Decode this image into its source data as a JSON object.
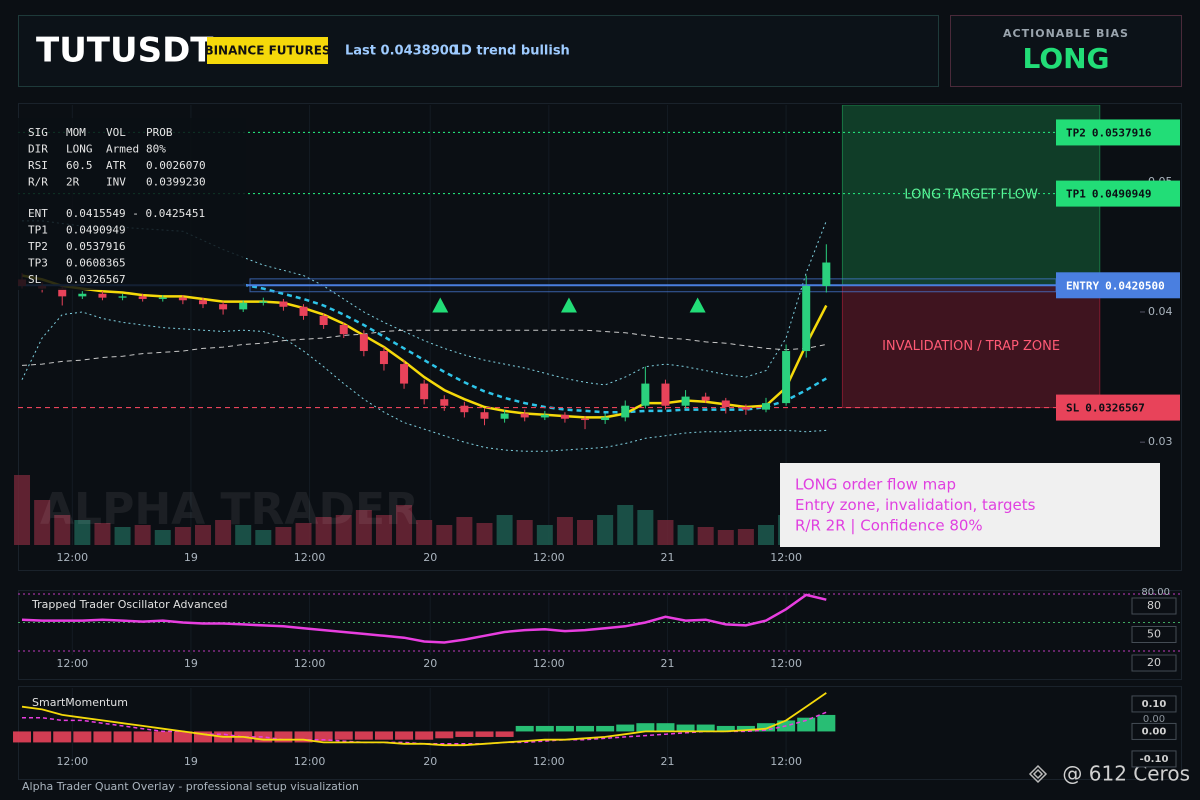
{
  "header": {
    "symbol": "TUTUSDT",
    "exchange": "BINANCE FUTURES",
    "last": "Last 0.0438900",
    "trend": "1D trend bullish",
    "bias_label": "ACTIONABLE BIAS",
    "bias": "LONG"
  },
  "stats_rows": [
    [
      "SIG",
      "MOM",
      "VOL",
      "PROB"
    ],
    [
      "DIR",
      "LONG",
      "Armed",
      "80%"
    ],
    [
      "RSI",
      "60.5",
      "ATR",
      "0.0026070"
    ],
    [
      "R/R",
      "2R",
      "INV",
      "0.0399230"
    ]
  ],
  "level_rows": [
    [
      "ENT",
      "0.0415549 - 0.0425451"
    ],
    [
      "TP1",
      "0.0490949"
    ],
    [
      "TP2",
      "0.0537916"
    ],
    [
      "TP3",
      "0.0608365"
    ],
    [
      "SL",
      "0.0326567"
    ]
  ],
  "annotation": [
    "LONG order flow map",
    "Entry zone, invalidation, targets",
    "R/R 2R | Confidence 80%"
  ],
  "watermark": "ALPHA TRADER",
  "footer": "Alpha Trader Quant Overlay - professional setup visualization",
  "credit": "@ 612 Ceros",
  "chart_data": [
    {
      "type": "candlestick",
      "xlim": [
        -0.2,
        55.6
      ],
      "xticks": [
        {
          "value": 2.5,
          "label": "12:00"
        },
        {
          "value": 8.4,
          "label": "19"
        },
        {
          "value": 14.3,
          "label": "12:00"
        },
        {
          "value": 20.3,
          "label": "20"
        },
        {
          "value": 26.2,
          "label": "12:00"
        },
        {
          "value": 32.1,
          "label": "21"
        },
        {
          "value": 38.0,
          "label": "12:00"
        }
      ],
      "ylim": [
        0.0221,
        0.0559
      ],
      "yticks": [
        0.03,
        0.04,
        0.05
      ],
      "up_color": "#2bd17e",
      "down_color": "#e8435a",
      "open": [
        0.0425,
        0.042,
        0.0418,
        0.0412,
        0.0414,
        0.0411,
        0.0412,
        0.041,
        0.0411,
        0.0409,
        0.0406,
        0.0402,
        0.0407,
        0.0408,
        0.0404,
        0.0397,
        0.039,
        0.0383,
        0.037,
        0.036,
        0.0345,
        0.0333,
        0.0328,
        0.0323,
        0.0318,
        0.0322,
        0.0319,
        0.0321,
        0.0318,
        0.0317,
        0.0319,
        0.0328,
        0.0345,
        0.0328,
        0.0335,
        0.0332,
        0.0327,
        0.0325,
        0.033,
        0.037,
        0.042
      ],
      "high": [
        0.043,
        0.0423,
        0.042,
        0.0416,
        0.0416,
        0.0414,
        0.0414,
        0.0413,
        0.0413,
        0.0411,
        0.0408,
        0.0409,
        0.0411,
        0.041,
        0.0406,
        0.0399,
        0.0392,
        0.0386,
        0.0373,
        0.0363,
        0.0348,
        0.0336,
        0.0331,
        0.0326,
        0.0325,
        0.0325,
        0.0324,
        0.0323,
        0.032,
        0.0322,
        0.0332,
        0.0358,
        0.0348,
        0.034,
        0.0338,
        0.0334,
        0.0329,
        0.0334,
        0.0375,
        0.0428,
        0.0452
      ],
      "low": [
        0.0418,
        0.0415,
        0.0405,
        0.041,
        0.0409,
        0.0409,
        0.0408,
        0.0408,
        0.0406,
        0.0403,
        0.0398,
        0.04,
        0.0405,
        0.0401,
        0.0394,
        0.0387,
        0.038,
        0.0366,
        0.0355,
        0.0341,
        0.0329,
        0.0324,
        0.0319,
        0.0313,
        0.0315,
        0.0316,
        0.0317,
        0.0315,
        0.031,
        0.0314,
        0.0316,
        0.0326,
        0.0325,
        0.0326,
        0.033,
        0.0322,
        0.0321,
        0.0323,
        0.0328,
        0.0365,
        0.0415
      ],
      "close": [
        0.042,
        0.0418,
        0.0412,
        0.0414,
        0.0411,
        0.0412,
        0.041,
        0.0411,
        0.0409,
        0.0406,
        0.0402,
        0.0407,
        0.0408,
        0.0404,
        0.0397,
        0.039,
        0.0383,
        0.037,
        0.036,
        0.0345,
        0.0333,
        0.0328,
        0.0323,
        0.0318,
        0.0322,
        0.0319,
        0.0321,
        0.0318,
        0.0317,
        0.0319,
        0.0328,
        0.0345,
        0.0328,
        0.0335,
        0.0332,
        0.0327,
        0.0325,
        0.033,
        0.037,
        0.042,
        0.0438
      ],
      "volume": [
        70,
        45,
        30,
        25,
        22,
        18,
        20,
        15,
        18,
        20,
        25,
        20,
        15,
        18,
        22,
        28,
        30,
        35,
        30,
        40,
        25,
        20,
        28,
        22,
        30,
        25,
        20,
        28,
        25,
        30,
        40,
        35,
        25,
        20,
        18,
        15,
        16,
        20,
        30,
        45,
        35
      ],
      "lines": [
        {
          "color": "#7fd0e0",
          "style": "dotted",
          "values": [
            0.047,
            0.047,
            0.0468,
            0.0466,
            0.0465,
            0.0465,
            0.0464,
            0.0463,
            0.0462,
            0.0455,
            0.0448,
            0.0442,
            0.0436,
            0.0432,
            0.0428,
            0.042,
            0.041,
            0.04,
            0.0392,
            0.0385,
            0.0378,
            0.0372,
            0.0367,
            0.0363,
            0.036,
            0.0357,
            0.0353,
            0.0349,
            0.0346,
            0.0344,
            0.035,
            0.0358,
            0.036,
            0.0358,
            0.0355,
            0.0352,
            0.035,
            0.0355,
            0.038,
            0.043,
            0.047
          ]
        },
        {
          "color": "#7fd0e0",
          "style": "dotted",
          "values": [
            0.0348,
            0.038,
            0.0398,
            0.04,
            0.0395,
            0.0392,
            0.039,
            0.0388,
            0.0387,
            0.0386,
            0.0385,
            0.0386,
            0.0385,
            0.038,
            0.037,
            0.0358,
            0.0345,
            0.0333,
            0.0323,
            0.0315,
            0.031,
            0.0305,
            0.03,
            0.0296,
            0.0294,
            0.0293,
            0.0293,
            0.0294,
            0.0295,
            0.0296,
            0.0299,
            0.0303,
            0.0305,
            0.0307,
            0.0308,
            0.0308,
            0.0309,
            0.0309,
            0.0309,
            0.0308,
            0.0309
          ]
        },
        {
          "color": "#c8c8c8",
          "style": "dashed",
          "values": [
            0.0359,
            0.036,
            0.0362,
            0.0363,
            0.0365,
            0.0366,
            0.0368,
            0.0369,
            0.037,
            0.0372,
            0.0373,
            0.0375,
            0.0376,
            0.0378,
            0.0379,
            0.038,
            0.0382,
            0.0383,
            0.0385,
            0.0386,
            0.0386,
            0.0386,
            0.0386,
            0.0386,
            0.0386,
            0.0386,
            0.0386,
            0.0386,
            0.0386,
            0.0385,
            0.0384,
            0.0382,
            0.038,
            0.0379,
            0.0377,
            0.0376,
            0.0374,
            0.0372,
            0.0371,
            0.0372,
            0.0375
          ]
        },
        {
          "color": "#2ec4e8",
          "style": "dashed-bold",
          "values": [
            null,
            null,
            null,
            null,
            null,
            null,
            null,
            null,
            null,
            null,
            null,
            0.0421,
            0.0418,
            0.0414,
            0.041,
            0.0405,
            0.0398,
            0.039,
            0.0381,
            0.0372,
            0.0363,
            0.0354,
            0.0346,
            0.0339,
            0.0334,
            0.033,
            0.0327,
            0.0325,
            0.0324,
            0.0323,
            0.0323,
            0.0324,
            0.0324,
            0.0325,
            0.0325,
            0.0325,
            0.0325,
            0.0327,
            0.0332,
            0.034,
            0.0349
          ]
        },
        {
          "color": "#f5d90a",
          "style": "solid",
          "values": [
            0.0428,
            0.0425,
            0.042,
            0.0418,
            0.0416,
            0.0415,
            0.0413,
            0.0412,
            0.0412,
            0.041,
            0.0408,
            0.0408,
            0.0408,
            0.0407,
            0.0403,
            0.0398,
            0.0391,
            0.0382,
            0.0373,
            0.0362,
            0.035,
            0.034,
            0.0333,
            0.0327,
            0.0324,
            0.0322,
            0.0321,
            0.032,
            0.0319,
            0.0319,
            0.0322,
            0.033,
            0.033,
            0.0332,
            0.0331,
            0.0329,
            0.0327,
            0.0328,
            0.0342,
            0.0375,
            0.0405
          ]
        }
      ],
      "levels": [
        {
          "name": "TP2",
          "value": 0.0537916,
          "label": "0.0537916",
          "color": "#22dd77",
          "style": "dotted"
        },
        {
          "name": "TP1",
          "value": 0.0490949,
          "label": "0.0490949",
          "color": "#22dd77",
          "style": "dotted"
        },
        {
          "name": "ENTRY",
          "value": 0.04205,
          "label": "0.0420500",
          "color": "#4a7fe0",
          "style": "solid"
        },
        {
          "name": "SL",
          "value": 0.0326567,
          "label": "0.0326567",
          "color": "#e8435a",
          "style": "dashed"
        }
      ],
      "entry_range": [
        0.0415549,
        0.0425451
      ],
      "zone_x": [
        40.8,
        53.6
      ],
      "zones": [
        {
          "label": "LONG TARGET FLOW",
          "from": 0.04205,
          "to": 0.0559,
          "color": "#1fa85a"
        },
        {
          "label": "INVALIDATION / TRAP ZONE",
          "from": 0.0326567,
          "to": 0.04205,
          "color": "#b8203c"
        }
      ],
      "signals": [
        20.8,
        27.2,
        33.6
      ],
      "signal_price": 0.0405
    },
    {
      "type": "line",
      "title": "Trapped Trader Oscillator Advanced",
      "xlim": [
        -0.2,
        55.6
      ],
      "xticks": [
        {
          "value": 2.5,
          "label": "12:00"
        },
        {
          "value": 8.4,
          "label": "19"
        },
        {
          "value": 14.3,
          "label": "12:00"
        },
        {
          "value": 20.3,
          "label": "20"
        },
        {
          "value": 26.2,
          "label": "12:00"
        },
        {
          "value": 32.1,
          "label": "21"
        },
        {
          "value": 38.0,
          "label": "12:00"
        }
      ],
      "ylim": [
        15.8,
        82.1
      ],
      "yticks": [
        80,
        50,
        20
      ],
      "top_label": "80.00",
      "color": "#e83ee0",
      "values": [
        53,
        52,
        52,
        52,
        53,
        52,
        51,
        52,
        50,
        49,
        49,
        48,
        47,
        46,
        44,
        42,
        40,
        38,
        36,
        34,
        30,
        29,
        32,
        36,
        40,
        42,
        43,
        41,
        42,
        44,
        46,
        50,
        56,
        52,
        53,
        48,
        47,
        52,
        64,
        79,
        74
      ]
    },
    {
      "type": "oscillator",
      "title": "SmartMomentum",
      "xlim": [
        -0.2,
        55.6
      ],
      "xticks": [
        {
          "value": 2.5,
          "label": "12:00"
        },
        {
          "value": 8.4,
          "label": "19"
        },
        {
          "value": 14.3,
          "label": "12:00"
        },
        {
          "value": 20.3,
          "label": "20"
        },
        {
          "value": 26.2,
          "label": "12:00"
        },
        {
          "value": 32.1,
          "label": "21"
        },
        {
          "value": 38.0,
          "label": "12:00"
        }
      ],
      "ylim": [
        -0.133,
        0.158
      ],
      "yticks": [
        {
          "value": 0.1,
          "label": "0.10"
        },
        {
          "value": 0,
          "label": "0.00"
        },
        {
          "value": -0.1,
          "label": "-0.10"
        }
      ],
      "extra_label": "0.00",
      "up_color": "#2bd17e",
      "down_color": "#e8435a",
      "histogram": [
        -0.04,
        -0.04,
        -0.04,
        -0.04,
        -0.04,
        -0.04,
        -0.04,
        -0.04,
        -0.04,
        -0.04,
        -0.04,
        -0.04,
        -0.04,
        -0.04,
        -0.04,
        -0.035,
        -0.03,
        -0.03,
        -0.03,
        -0.03,
        -0.03,
        -0.025,
        -0.02,
        -0.02,
        -0.02,
        0.02,
        0.02,
        0.02,
        0.02,
        0.02,
        0.025,
        0.03,
        0.03,
        0.025,
        0.025,
        0.02,
        0.02,
        0.03,
        0.04,
        0.05,
        0.06
      ],
      "line": {
        "color": "#f5d90a",
        "values": [
          0.09,
          0.08,
          0.06,
          0.05,
          0.04,
          0.03,
          0.02,
          0.01,
          0.0,
          -0.01,
          -0.02,
          -0.02,
          -0.03,
          -0.03,
          -0.03,
          -0.04,
          -0.04,
          -0.04,
          -0.04,
          -0.045,
          -0.045,
          -0.05,
          -0.05,
          -0.045,
          -0.04,
          -0.035,
          -0.03,
          -0.03,
          -0.025,
          -0.02,
          -0.01,
          0.0,
          0.0,
          0.0,
          0.0,
          0.0,
          0.005,
          0.01,
          0.04,
          0.09,
          0.14
        ]
      },
      "signal": {
        "color": "#e83ee0",
        "values": [
          0.05,
          0.05,
          0.04,
          0.04,
          0.03,
          0.02,
          0.01,
          0.0,
          0.0,
          -0.01,
          -0.01,
          -0.02,
          -0.02,
          -0.03,
          -0.03,
          -0.03,
          -0.035,
          -0.04,
          -0.04,
          -0.04,
          -0.045,
          -0.045,
          -0.045,
          -0.045,
          -0.04,
          -0.04,
          -0.035,
          -0.03,
          -0.03,
          -0.025,
          -0.02,
          -0.015,
          -0.01,
          -0.005,
          0.0,
          0.0,
          0.0,
          0.005,
          0.02,
          0.04,
          0.07
        ]
      }
    }
  ]
}
